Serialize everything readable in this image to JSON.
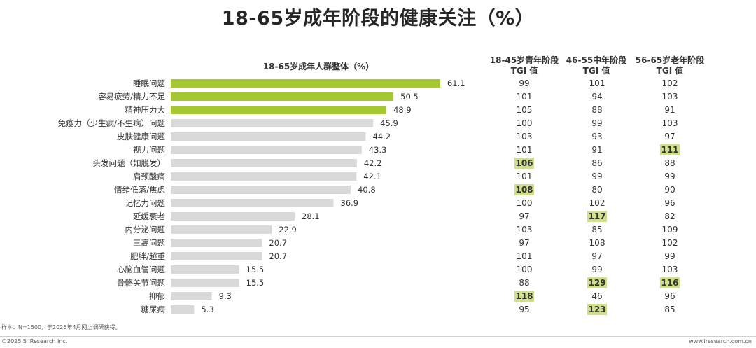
{
  "page_title": "18-65岁成年阶段的健康关注（%）",
  "footnote": "样本：N=1500，于2025年4月网上调研获得。",
  "copyright": "©2025.5 iResearch Inc.",
  "website": "www.iresearch.com.cn",
  "colors": {
    "highlight_bar": "#a5c832",
    "normal_bar": "#d9d9d9",
    "highlight_cell": "#cfe08c"
  },
  "chart_data": {
    "type": "bar",
    "orientation": "horizontal",
    "title": "18-65岁成年人群整体（%）",
    "categories": [
      "睡眠问题",
      "容易疲劳/精力不足",
      "精神压力大",
      "免疫力（少生病/不生病）问题",
      "皮肤健康问题",
      "视力问题",
      "头发问题（如脱发）",
      "肩颈酸痛",
      "情绪低落/焦虑",
      "记忆力问题",
      "延缓衰老",
      "内分泌问题",
      "三高问题",
      "肥胖/超重",
      "心脑血管问题",
      "骨骼关节问题",
      "抑郁",
      "糖尿病"
    ],
    "values": [
      61.1,
      50.5,
      48.9,
      45.9,
      44.2,
      43.3,
      42.2,
      42.1,
      40.8,
      36.9,
      28.1,
      22.9,
      20.7,
      20.7,
      15.5,
      15.5,
      9.3,
      5.3
    ],
    "value_labels": [
      "61.1",
      "50.5",
      "48.9",
      "45.9",
      "44.2",
      "43.3",
      "42.2",
      "42.1",
      "40.8",
      "36.9",
      "28.1",
      "22.9",
      "20.7",
      "20.7",
      "15.5",
      "15.5",
      "9.3",
      "5.3"
    ],
    "highlighted": [
      true,
      true,
      true,
      false,
      false,
      false,
      false,
      false,
      false,
      false,
      false,
      false,
      false,
      false,
      false,
      false,
      false,
      false
    ],
    "xlim": [
      0,
      70
    ],
    "tgi_table": {
      "columns": [
        {
          "header_line1": "18-45岁青年阶段",
          "header_line2": "TGI 值",
          "values": [
            99,
            101,
            105,
            100,
            103,
            101,
            106,
            101,
            108,
            100,
            97,
            103,
            97,
            101,
            100,
            88,
            118,
            95
          ],
          "highlighted": [
            false,
            false,
            false,
            false,
            false,
            false,
            true,
            false,
            true,
            false,
            false,
            false,
            false,
            false,
            false,
            false,
            true,
            false
          ]
        },
        {
          "header_line1": "46-55中年阶段",
          "header_line2": "TGI 值",
          "values": [
            101,
            94,
            88,
            99,
            93,
            91,
            86,
            99,
            80,
            102,
            117,
            85,
            108,
            97,
            99,
            129,
            46,
            123
          ],
          "highlighted": [
            false,
            false,
            false,
            false,
            false,
            false,
            false,
            false,
            false,
            false,
            true,
            false,
            false,
            false,
            false,
            true,
            false,
            true
          ]
        },
        {
          "header_line1": "56-65岁老年阶段",
          "header_line2": "TGI 值",
          "values": [
            102,
            103,
            91,
            103,
            97,
            111,
            88,
            99,
            90,
            96,
            82,
            109,
            102,
            99,
            103,
            116,
            96,
            85
          ],
          "highlighted": [
            false,
            false,
            false,
            false,
            false,
            true,
            false,
            false,
            false,
            false,
            false,
            false,
            false,
            false,
            false,
            true,
            false,
            false
          ]
        }
      ]
    }
  }
}
